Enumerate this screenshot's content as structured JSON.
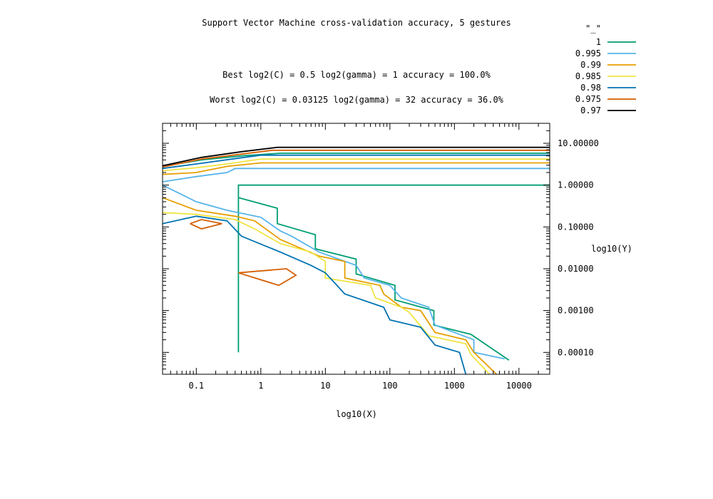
{
  "chart_data": {
    "type": "contour",
    "title": "Support Vector Machine cross-validation accuracy, 5 gestures",
    "subtitle_best": "Best log2(C) = 0.5  log2(gamma) = 1  accuracy = 100.0%",
    "subtitle_worst": "Worst log2(C) = 0.03125  log2(gamma) = 32   accuracy = 36.0%",
    "xlabel": "log10(X)",
    "ylabel": "log10(Y)",
    "xscale": "log",
    "yscale": "log",
    "xlim": [
      0.03,
      30000
    ],
    "ylim": [
      3e-05,
      30
    ],
    "x_ticks": [
      {
        "value": 0.1,
        "label": "0.1"
      },
      {
        "value": 1,
        "label": "1"
      },
      {
        "value": 10,
        "label": "10"
      },
      {
        "value": 100,
        "label": "100"
      },
      {
        "value": 1000,
        "label": "1000"
      },
      {
        "value": 10000,
        "label": "10000"
      }
    ],
    "y_ticks": [
      {
        "value": 10,
        "label": "10.00000"
      },
      {
        "value": 1,
        "label": "1.00000"
      },
      {
        "value": 0.1,
        "label": "0.10000"
      },
      {
        "value": 0.01,
        "label": "0.01000"
      },
      {
        "value": 0.001,
        "label": "0.00100"
      },
      {
        "value": 0.0001,
        "label": "0.00010"
      }
    ],
    "legend_title": "\"_\"",
    "legend_position": "top-right, outside plot",
    "series": [
      {
        "name": "1",
        "color": "#009e73",
        "paths": [
          [
            [
              0.45,
              0.0001
            ],
            [
              0.45,
              1
            ],
            [
              30000,
              1
            ]
          ],
          [
            [
              0.45,
              0.5
            ],
            [
              1.8,
              0.28
            ],
            [
              1.8,
              0.12
            ],
            [
              7,
              0.065
            ],
            [
              7,
              0.03
            ],
            [
              30,
              0.017
            ],
            [
              30,
              0.0075
            ],
            [
              120,
              0.004
            ],
            [
              120,
              0.0018
            ],
            [
              480,
              0.001
            ],
            [
              480,
              0.00045
            ],
            [
              1800,
              0.00027
            ],
            [
              7000,
              6.5e-05
            ]
          ],
          [
            [
              0.03,
              2.8
            ],
            [
              0.12,
              4
            ],
            [
              0.5,
              5
            ],
            [
              2,
              5.8
            ],
            [
              30000,
              5.8
            ]
          ]
        ]
      },
      {
        "name": "0.995",
        "color": "#56b4e9",
        "paths": [
          [
            [
              0.03,
              1.2
            ],
            [
              0.1,
              1.6
            ],
            [
              0.3,
              2
            ],
            [
              0.4,
              2.5
            ],
            [
              30000,
              2.5
            ]
          ],
          [
            [
              0.03,
              1
            ],
            [
              0.1,
              0.4
            ],
            [
              0.3,
              0.25
            ],
            [
              1,
              0.17
            ],
            [
              2,
              0.08
            ],
            [
              3,
              0.06
            ],
            [
              8,
              0.025
            ],
            [
              30,
              0.012
            ],
            [
              40,
              0.006
            ],
            [
              100,
              0.004
            ],
            [
              150,
              0.002
            ],
            [
              400,
              0.0012
            ],
            [
              500,
              0.00045
            ],
            [
              2000,
              0.0002
            ],
            [
              2000,
              0.0001
            ],
            [
              6000,
              7e-05
            ]
          ]
        ]
      },
      {
        "name": "0.99",
        "color": "#e69f00",
        "paths": [
          [
            [
              0.03,
              1.8
            ],
            [
              0.1,
              2
            ],
            [
              0.3,
              2.8
            ],
            [
              1,
              3.4
            ],
            [
              30000,
              3.4
            ]
          ],
          [
            [
              0.03,
              0.5
            ],
            [
              0.1,
              0.25
            ],
            [
              0.4,
              0.18
            ],
            [
              0.8,
              0.14
            ],
            [
              2,
              0.05
            ],
            [
              8,
              0.02
            ],
            [
              20,
              0.015
            ],
            [
              20,
              0.006
            ],
            [
              70,
              0.004
            ],
            [
              80,
              0.0025
            ],
            [
              150,
              0.0012
            ],
            [
              300,
              0.001
            ],
            [
              500,
              0.0003
            ],
            [
              1500,
              0.0002
            ],
            [
              2000,
              0.0001
            ],
            [
              4500,
              3e-05
            ]
          ]
        ]
      },
      {
        "name": "0.985",
        "color": "#f0e442",
        "paths": [
          [
            [
              0.03,
              2.2
            ],
            [
              0.1,
              2.6
            ],
            [
              0.3,
              3.2
            ],
            [
              1,
              4.2
            ],
            [
              30000,
              4.2
            ]
          ],
          [
            [
              0.03,
              0.22
            ],
            [
              0.1,
              0.2
            ],
            [
              0.4,
              0.15
            ],
            [
              0.8,
              0.09
            ],
            [
              2,
              0.04
            ],
            [
              6,
              0.025
            ],
            [
              10,
              0.015
            ],
            [
              10,
              0.006
            ],
            [
              50,
              0.004
            ],
            [
              60,
              0.002
            ],
            [
              150,
              0.0012
            ],
            [
              200,
              0.0009
            ],
            [
              400,
              0.00025
            ],
            [
              1500,
              0.00016
            ],
            [
              1800,
              9e-05
            ],
            [
              3500,
              3e-05
            ]
          ]
        ]
      },
      {
        "name": "0.98",
        "color": "#0072b2",
        "paths": [
          [
            [
              0.03,
              2.5
            ],
            [
              0.1,
              3.2
            ],
            [
              0.5,
              4.5
            ],
            [
              1,
              5.2
            ],
            [
              30000,
              5.2
            ]
          ],
          [
            [
              0.03,
              0.12
            ],
            [
              0.1,
              0.18
            ],
            [
              0.3,
              0.14
            ],
            [
              0.5,
              0.06
            ],
            [
              2,
              0.025
            ],
            [
              6,
              0.012
            ],
            [
              10,
              0.008
            ],
            [
              20,
              0.0025
            ],
            [
              80,
              0.0012
            ],
            [
              100,
              0.0006
            ],
            [
              300,
              0.0004
            ],
            [
              500,
              0.00015
            ],
            [
              1200,
              0.0001
            ],
            [
              1500,
              3e-05
            ]
          ]
        ]
      },
      {
        "name": "0.975",
        "color": "#d55e00",
        "paths": [
          [
            [
              0.08,
              0.12
            ],
            [
              0.12,
              0.15
            ],
            [
              0.25,
              0.12
            ],
            [
              0.12,
              0.09
            ],
            [
              0.08,
              0.12
            ]
          ],
          [
            [
              0.45,
              0.008
            ],
            [
              2.5,
              0.01
            ],
            [
              3.5,
              0.007
            ],
            [
              1.9,
              0.004
            ],
            [
              0.45,
              0.008
            ]
          ],
          [
            [
              0.03,
              2.7
            ],
            [
              0.12,
              4.2
            ],
            [
              0.5,
              5.5
            ],
            [
              1.5,
              6.8
            ],
            [
              30000,
              6.8
            ]
          ]
        ]
      },
      {
        "name": "0.97",
        "color": "#000000",
        "paths": [
          [
            [
              0.03,
              2.9
            ],
            [
              0.12,
              4.6
            ],
            [
              0.5,
              6.3
            ],
            [
              1.8,
              8
            ],
            [
              30000,
              8
            ]
          ]
        ]
      }
    ]
  }
}
